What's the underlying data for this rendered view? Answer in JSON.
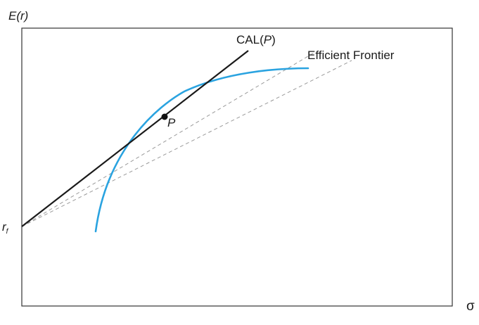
{
  "axes": {
    "y_label": {
      "main": "E(",
      "var": "r",
      "close": ")"
    },
    "x_label": "σ",
    "rf_label": {
      "main": "r",
      "sub": "f"
    }
  },
  "labels": {
    "cal": {
      "main": "CAL(",
      "var": "P",
      "close": ")"
    },
    "frontier": "Efficient Frontier",
    "point": "P"
  },
  "colors": {
    "frontier": "#2aa3e0",
    "cal_line": "#1a1a1a",
    "dashed": "#9a9a9a",
    "frame": "#333333"
  }
}
